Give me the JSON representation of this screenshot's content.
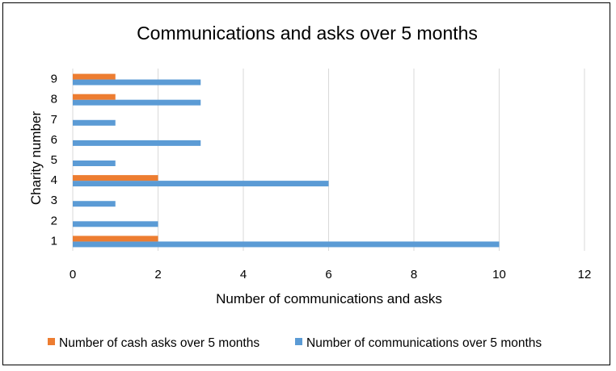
{
  "chart_data": {
    "type": "bar",
    "orientation": "horizontal",
    "title": "Communications and asks over 5 months",
    "xlabel": "Number of communications and asks",
    "ylabel": "Charity number",
    "categories": [
      "1",
      "2",
      "3",
      "4",
      "5",
      "6",
      "7",
      "8",
      "9"
    ],
    "xlim": [
      0,
      12
    ],
    "xticks": [
      "0",
      "2",
      "4",
      "6",
      "8",
      "10",
      "12"
    ],
    "grid": true,
    "legend_position": "bottom",
    "series": [
      {
        "name": "Number of communications  over 5 months",
        "color": "#5b9bd5",
        "values": [
          10,
          2,
          1,
          6,
          1,
          3,
          1,
          3,
          3
        ]
      },
      {
        "name": "Number of cash asks  over 5 months",
        "color": "#ed7d31",
        "values": [
          2,
          0,
          0,
          2,
          0,
          0,
          0,
          1,
          1
        ]
      }
    ],
    "legend_order": [
      1,
      0
    ]
  }
}
